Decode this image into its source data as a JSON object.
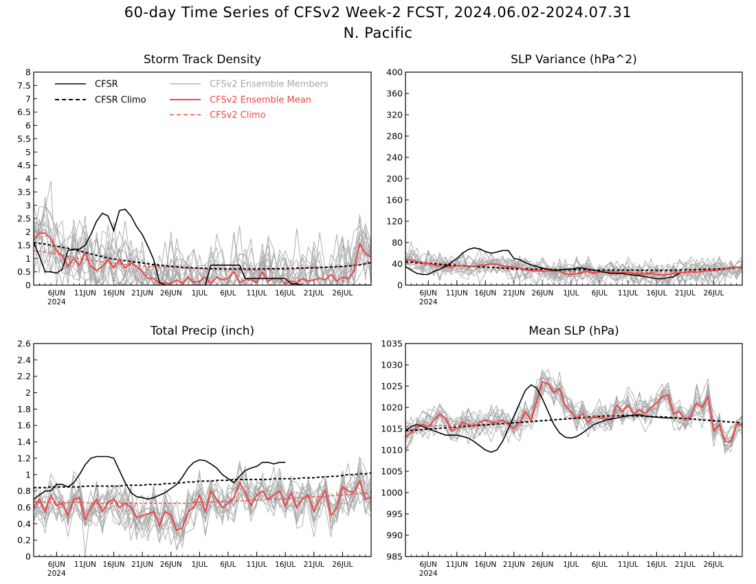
{
  "figure": {
    "title_line1": "60-day Time Series of CFSv2 Week-2 FCST, 2024.06.02-2024.07.31",
    "title_line2": "N. Pacific"
  },
  "colors": {
    "cfsr": "#000000",
    "cfsr_climo": "#000000",
    "members": "#a8a8a8",
    "ens_mean": "#ef4444",
    "cfsv2_climo": "#ef4444"
  },
  "legend": {
    "cfsr": "CFSR",
    "cfsr_climo": "CFSR Climo",
    "members": "CFSv2 Ensemble Members",
    "ens_mean": "CFSv2 Ensemble Mean",
    "cfsv2_climo": "CFSv2 Climo"
  },
  "chart_data": [
    {
      "id": "storm",
      "type": "line",
      "title": "Storm Track Density",
      "x_start": "2024-06-02",
      "xlim": [
        0,
        59
      ],
      "ylim": [
        0,
        8
      ],
      "yticks": [
        "0",
        "0.5",
        "1",
        "1.5",
        "2",
        "2.5",
        "3",
        "3.5",
        "4",
        "4.5",
        "5",
        "5.5",
        "6",
        "6.5",
        "7",
        "7.5",
        "8"
      ],
      "xticks": [
        "6JUN",
        "11JUN",
        "16JUN",
        "21JUN",
        "26JUN",
        "1JUL",
        "6JUL",
        "11JUL",
        "16JUL",
        "21JUL",
        "26JUL"
      ],
      "xtick_year": "2024",
      "grid": false,
      "legend_position": "top",
      "cfsr": [
        1.6,
        1.1,
        0.5,
        0.5,
        0.45,
        0.6,
        1.3,
        1.35,
        1.35,
        1.5,
        1.9,
        2.4,
        2.7,
        2.6,
        2.05,
        2.8,
        2.85,
        2.6,
        2.2,
        1.9,
        1.45,
        0.95,
        0.1,
        0,
        0,
        0,
        0,
        0,
        0,
        0,
        0,
        0.75,
        0.75,
        0.75,
        0.75,
        0.75,
        0.75,
        0.25,
        0.25,
        0.25,
        0.25,
        0.25,
        0.25,
        0.25,
        0.25,
        0.05,
        0.05,
        0,
        0,
        0,
        0,
        0,
        0,
        0,
        0,
        0,
        0,
        0,
        0,
        0
      ],
      "cfsr_climo": [
        1.6,
        1.57,
        1.54,
        1.5,
        1.46,
        1.42,
        1.38,
        1.33,
        1.28,
        1.23,
        1.17,
        1.12,
        1.07,
        1.02,
        0.98,
        0.95,
        0.92,
        0.89,
        0.86,
        0.83,
        0.8,
        0.77,
        0.75,
        0.73,
        0.71,
        0.69,
        0.67,
        0.66,
        0.65,
        0.64,
        0.63,
        0.62,
        0.62,
        0.61,
        0.61,
        0.61,
        0.61,
        0.61,
        0.61,
        0.61,
        0.61,
        0.62,
        0.62,
        0.62,
        0.63,
        0.63,
        0.64,
        0.64,
        0.65,
        0.65,
        0.66,
        0.67,
        0.68,
        0.69,
        0.7,
        0.72,
        0.74,
        0.76,
        0.8,
        0.85
      ],
      "ens_mean": [
        1.7,
        1.95,
        1.95,
        1.75,
        1.3,
        1.1,
        0.7,
        1.0,
        0.75,
        1.2,
        0.7,
        0.55,
        0.7,
        0.95,
        0.65,
        0.95,
        0.65,
        0.85,
        0.7,
        0.5,
        0.25,
        0.25,
        0.05,
        0.1,
        0.05,
        0.2,
        0.05,
        0.3,
        0.1,
        0.15,
        0.3,
        0.05,
        0.3,
        0.2,
        0.25,
        0.5,
        0.1,
        0.2,
        0.2,
        0.1,
        0.5,
        0.15,
        0.25,
        0.25,
        0.05,
        0.15,
        0.1,
        0.25,
        0.15,
        0.2,
        0.25,
        0.2,
        0.4,
        0.15,
        0.3,
        0.25,
        0.5,
        1.55,
        1.2,
        1.05
      ],
      "cfsv2_climo": [
        1.3,
        1.27,
        1.24,
        1.2,
        1.16,
        1.12,
        1.08,
        1.04,
        1.0,
        0.96,
        0.93,
        0.9,
        0.87,
        0.84,
        0.82,
        0.8,
        0.78,
        0.76,
        0.74,
        0.72,
        0.71,
        0.7,
        0.69,
        0.68,
        0.67,
        0.66,
        0.65,
        0.64,
        0.63,
        0.62,
        0.61,
        0.6,
        0.59,
        0.59,
        0.58,
        0.58,
        0.57,
        0.57,
        0.57,
        0.57,
        0.57,
        0.58,
        0.58,
        0.59,
        0.59,
        0.6,
        0.61,
        0.62,
        0.63,
        0.64,
        0.65,
        0.66,
        0.67,
        0.69,
        0.71,
        0.73,
        0.75,
        0.78,
        0.82,
        0.86
      ],
      "members_count": 16,
      "members_spread": 1.0
    },
    {
      "id": "slpvar",
      "type": "line",
      "title": "SLP Variance (hPa^2)",
      "x_start": "2024-06-02",
      "xlim": [
        0,
        59
      ],
      "ylim": [
        0,
        400
      ],
      "yticks": [
        "0",
        "40",
        "80",
        "120",
        "160",
        "200",
        "240",
        "280",
        "320",
        "360",
        "400"
      ],
      "xticks": [
        "6JUN",
        "11JUN",
        "16JUN",
        "21JUN",
        "26JUN",
        "1JUL",
        "6JUL",
        "11JUL",
        "16JUL",
        "21JUL",
        "26JUL"
      ],
      "xtick_year": "2024",
      "grid": false,
      "cfsr": [
        35,
        28,
        22,
        20,
        20,
        26,
        30,
        35,
        42,
        50,
        60,
        67,
        70,
        68,
        63,
        60,
        62,
        65,
        65,
        50,
        48,
        42,
        38,
        35,
        32,
        30,
        28,
        28,
        30,
        30,
        32,
        32,
        30,
        28,
        26,
        24,
        22,
        22,
        22,
        20,
        19,
        18,
        16,
        14,
        12,
        12,
        14,
        16,
        22
      ],
      "cfsr_climo": [
        44,
        43,
        42,
        41,
        40,
        40,
        39,
        38,
        37,
        37,
        36,
        35,
        35,
        34,
        34,
        33,
        33,
        32,
        32,
        31,
        31,
        31,
        30,
        30,
        30,
        30,
        29,
        29,
        29,
        29,
        29,
        29,
        29,
        28,
        28,
        28,
        28,
        28,
        28,
        28,
        28,
        28,
        28,
        28,
        28,
        28,
        28,
        28,
        28,
        29,
        29,
        29,
        30,
        30,
        30,
        31,
        31,
        32,
        33,
        34
      ],
      "ens_mean": [
        48,
        47,
        44,
        42,
        40,
        38,
        36,
        35,
        34,
        36,
        37,
        36,
        35,
        37,
        38,
        40,
        39,
        36,
        35,
        34,
        32,
        29,
        27,
        27,
        26,
        27,
        26,
        27,
        21,
        20,
        21,
        24,
        27,
        22,
        25,
        24,
        25,
        24,
        23,
        24,
        22,
        21,
        21,
        22,
        20,
        19,
        20,
        22,
        23,
        24,
        25,
        24,
        26,
        27,
        27,
        28,
        30,
        34,
        33,
        32
      ],
      "cfsv2_climo": [
        47,
        46,
        45,
        44,
        43,
        42,
        41,
        40,
        39,
        38,
        37,
        36,
        35,
        34,
        33,
        33,
        32,
        31,
        30,
        29,
        29,
        28,
        28,
        27,
        27,
        26,
        26,
        26,
        25,
        25,
        25,
        24,
        24,
        24,
        24,
        24,
        24,
        24,
        24,
        24,
        24,
        24,
        24,
        24,
        25,
        25,
        25,
        25,
        26,
        26,
        27,
        27,
        28,
        28,
        29,
        30,
        31,
        32,
        33,
        34
      ],
      "members_count": 16,
      "members_spread": 18
    },
    {
      "id": "precip",
      "type": "line",
      "title": "Total Precip (inch)",
      "x_start": "2024-06-02",
      "xlim": [
        0,
        59
      ],
      "ylim": [
        0,
        2.6
      ],
      "yticks": [
        "0",
        "0.2",
        "0.4",
        "0.6",
        "0.8",
        "1",
        "1.2",
        "1.4",
        "1.6",
        "1.8",
        "2",
        "2.2",
        "2.4",
        "2.6"
      ],
      "xticks": [
        "6JUN",
        "11JUN",
        "16JUN",
        "21JUN",
        "26JUN",
        "1JUL",
        "6JUL",
        "11JUL",
        "16JUL",
        "21JUL",
        "26JUL"
      ],
      "xtick_year": "2024",
      "grid": false,
      "cfsr": [
        0.7,
        0.75,
        0.8,
        0.8,
        0.88,
        0.88,
        0.85,
        0.9,
        1.0,
        1.12,
        1.2,
        1.22,
        1.22,
        1.22,
        1.2,
        1.05,
        0.9,
        0.78,
        0.73,
        0.72,
        0.7,
        0.72,
        0.75,
        0.78,
        0.83,
        0.88,
        0.97,
        1.08,
        1.15,
        1.18,
        1.17,
        1.13,
        1.08,
        1.0,
        0.95,
        0.9,
        0.98,
        1.05,
        1.08,
        1.1,
        1.15,
        1.15,
        1.13,
        1.15,
        1.15
      ],
      "cfsr_climo": [
        0.84,
        0.84,
        0.84,
        0.85,
        0.85,
        0.85,
        0.85,
        0.85,
        0.85,
        0.86,
        0.86,
        0.86,
        0.86,
        0.86,
        0.86,
        0.86,
        0.87,
        0.87,
        0.87,
        0.87,
        0.88,
        0.88,
        0.88,
        0.89,
        0.89,
        0.9,
        0.9,
        0.91,
        0.91,
        0.92,
        0.92,
        0.92,
        0.93,
        0.93,
        0.93,
        0.94,
        0.94,
        0.94,
        0.94,
        0.94,
        0.94,
        0.94,
        0.95,
        0.95,
        0.95,
        0.95,
        0.95,
        0.96,
        0.96,
        0.96,
        0.97,
        0.97,
        0.98,
        0.98,
        0.99,
        1.0,
        1.0,
        1.01,
        1.01,
        1.02
      ],
      "ens_mean": [
        0.6,
        0.7,
        0.55,
        0.75,
        0.62,
        0.65,
        0.5,
        0.7,
        0.72,
        0.45,
        0.6,
        0.7,
        0.55,
        0.66,
        0.7,
        0.6,
        0.65,
        0.6,
        0.48,
        0.5,
        0.52,
        0.55,
        0.38,
        0.55,
        0.5,
        0.32,
        0.35,
        0.55,
        0.6,
        0.75,
        0.55,
        0.8,
        0.7,
        0.6,
        0.65,
        0.72,
        0.9,
        0.78,
        0.62,
        0.75,
        0.8,
        0.7,
        0.75,
        0.8,
        0.62,
        0.78,
        0.6,
        0.7,
        0.75,
        0.55,
        0.7,
        0.8,
        0.5,
        0.6,
        0.85,
        0.8,
        0.78,
        0.92,
        0.7,
        0.72
      ],
      "cfsv2_climo": [
        0.66,
        0.66,
        0.66,
        0.66,
        0.66,
        0.66,
        0.66,
        0.66,
        0.66,
        0.66,
        0.65,
        0.65,
        0.65,
        0.65,
        0.65,
        0.65,
        0.65,
        0.65,
        0.65,
        0.65,
        0.65,
        0.65,
        0.65,
        0.65,
        0.65,
        0.65,
        0.65,
        0.65,
        0.66,
        0.66,
        0.66,
        0.66,
        0.67,
        0.67,
        0.67,
        0.68,
        0.68,
        0.68,
        0.69,
        0.69,
        0.69,
        0.7,
        0.7,
        0.7,
        0.71,
        0.71,
        0.72,
        0.72,
        0.72,
        0.73,
        0.73,
        0.74,
        0.74,
        0.75,
        0.75,
        0.76,
        0.76,
        0.77,
        0.77,
        0.78
      ],
      "members_count": 16,
      "members_spread": 0.2
    },
    {
      "id": "mslp",
      "type": "line",
      "title": "Mean SLP (hPa)",
      "x_start": "2024-06-02",
      "xlim": [
        0,
        59
      ],
      "ylim": [
        985,
        1035
      ],
      "yticks": [
        "985",
        "990",
        "995",
        "1000",
        "1005",
        "1010",
        "1015",
        "1020",
        "1025",
        "1030",
        "1035"
      ],
      "xticks": [
        "6JUN",
        "11JUN",
        "16JUN",
        "21JUN",
        "26JUN",
        "1JUL",
        "6JUL",
        "11JUL",
        "16JUL",
        "21JUL",
        "26JUL"
      ],
      "xtick_year": "2024",
      "grid": false,
      "cfsr": [
        1014.5,
        1015.5,
        1016,
        1015.5,
        1015,
        1014.5,
        1014,
        1013.5,
        1013.5,
        1013.5,
        1013.2,
        1012.8,
        1012,
        1011,
        1010,
        1009.5,
        1010,
        1012,
        1015,
        1018,
        1021,
        1024,
        1025.3,
        1024.5,
        1022,
        1019,
        1016,
        1014,
        1013,
        1012.8,
        1013.2,
        1014,
        1015,
        1016,
        1016.5,
        1017,
        1017.3,
        1017.5,
        1017.8,
        1018,
        1018.2,
        1018.3,
        1018,
        1017.8,
        1017.7,
        1017.6,
        1017.5,
        1017.5
      ],
      "cfsr_climo": [
        1014.5,
        1014.6,
        1014.7,
        1014.8,
        1014.9,
        1015,
        1015.1,
        1015.2,
        1015.3,
        1015.4,
        1015.5,
        1015.6,
        1015.7,
        1015.8,
        1015.9,
        1016,
        1016.1,
        1016.2,
        1016.3,
        1016.4,
        1016.5,
        1016.6,
        1016.7,
        1016.8,
        1016.9,
        1017,
        1017.1,
        1017.2,
        1017.3,
        1017.4,
        1017.5,
        1017.6,
        1017.7,
        1017.8,
        1017.9,
        1018,
        1018,
        1018,
        1018.1,
        1018.1,
        1018,
        1018,
        1017.9,
        1017.9,
        1017.8,
        1017.8,
        1017.7,
        1017.6,
        1017.5,
        1017.4,
        1017.3,
        1017.2,
        1017.1,
        1017,
        1016.9,
        1016.8,
        1016.7,
        1016.6,
        1016.5,
        1016.3
      ],
      "ens_mean": [
        1013,
        1014,
        1015.5,
        1016,
        1015.5,
        1017,
        1018.5,
        1017.5,
        1014.5,
        1015,
        1016.5,
        1016,
        1015.5,
        1016.5,
        1017,
        1016.5,
        1016.5,
        1017,
        1016,
        1015,
        1016.5,
        1019,
        1017,
        1021.5,
        1026,
        1025.5,
        1023.5,
        1024.5,
        1020.5,
        1019,
        1017.5,
        1018.5,
        1016.5,
        1018,
        1017.5,
        1017.5,
        1017,
        1020.5,
        1019,
        1020.5,
        1018.5,
        1019.5,
        1018.5,
        1020,
        1021,
        1022.5,
        1023,
        1018.5,
        1019,
        1017,
        1018,
        1021,
        1020,
        1022.5,
        1014.5,
        1016,
        1012,
        1012,
        1016,
        1016
      ],
      "cfsv2_climo": [
        1015.6,
        1015.6,
        1015.6,
        1015.6,
        1015.7,
        1015.7,
        1015.7,
        1015.7,
        1015.8,
        1015.8,
        1015.8,
        1015.9,
        1015.9,
        1016,
        1016,
        1016.1,
        1016.1,
        1016.2,
        1016.2,
        1016.3,
        1016.4,
        1016.5,
        1016.6,
        1016.7,
        1016.8,
        1016.9,
        1017,
        1017.1,
        1017.2,
        1017.3,
        1017.4,
        1017.5,
        1017.6,
        1017.7,
        1017.8,
        1017.9,
        1017.9,
        1018,
        1018,
        1018,
        1018,
        1018,
        1017.9,
        1017.9,
        1017.8,
        1017.7,
        1017.6,
        1017.5,
        1017.4,
        1017.3,
        1017.2,
        1017.1,
        1017,
        1016.9,
        1016.8,
        1016.7,
        1016.6,
        1016.5,
        1016.4,
        1016.3
      ],
      "members_count": 16,
      "members_spread": 2.5
    }
  ]
}
